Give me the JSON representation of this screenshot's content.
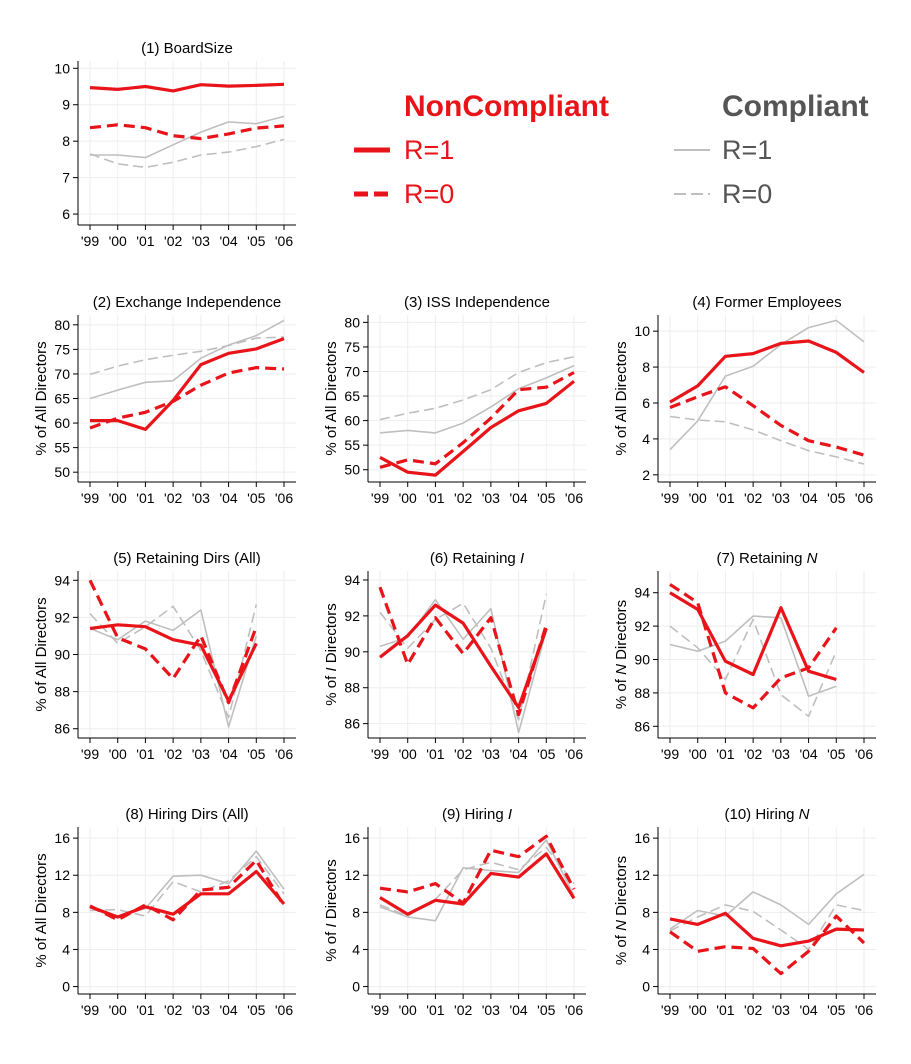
{
  "colors": {
    "noncompliant": "#e8141a",
    "compliant": "#bfbfbf",
    "compliant_title": "#555555",
    "axis": "#000000",
    "grid": "#eeeeee"
  },
  "legend": {
    "noncompliant_title": "NonCompliant",
    "compliant_title": "Compliant",
    "nc_r1": "R=1",
    "nc_r0": "R=0",
    "c_r1": "R=1",
    "c_r0": "R=0"
  },
  "chart_data": [
    {
      "type": "line",
      "title": "(1) BoardSize",
      "ylabel": "",
      "ylim": [
        5.7,
        10.2
      ],
      "yticks": [
        6,
        7,
        8,
        9,
        10
      ],
      "x": [
        "'99",
        "'00",
        "'01",
        "'02",
        "'03",
        "'04",
        "'05",
        "'06"
      ],
      "series": [
        {
          "group": "NonCompliant",
          "label": "R=1",
          "values": [
            9.47,
            9.42,
            9.5,
            9.38,
            9.55,
            9.51,
            9.53,
            9.56
          ]
        },
        {
          "group": "NonCompliant",
          "label": "R=0",
          "values": [
            8.37,
            8.45,
            8.37,
            8.15,
            8.07,
            8.2,
            8.36,
            8.42
          ]
        },
        {
          "group": "Compliant",
          "label": "R=1",
          "values": [
            7.62,
            7.62,
            7.55,
            7.9,
            8.25,
            8.53,
            8.48,
            8.68
          ]
        },
        {
          "group": "Compliant",
          "label": "R=0",
          "values": [
            7.65,
            7.38,
            7.28,
            7.42,
            7.62,
            7.7,
            7.85,
            8.05
          ]
        }
      ]
    },
    {
      "type": "line",
      "title": "(2) Exchange Independence",
      "ylabel": "% of All Directors",
      "ylim": [
        48,
        82
      ],
      "yticks": [
        50,
        55,
        60,
        65,
        70,
        75,
        80
      ],
      "x": [
        "'99",
        "'00",
        "'01",
        "'02",
        "'03",
        "'04",
        "'05",
        "'06"
      ],
      "series": [
        {
          "group": "NonCompliant",
          "label": "R=1",
          "values": [
            60.5,
            60.5,
            58.7,
            64.6,
            71.9,
            74.2,
            75.1,
            77.2
          ]
        },
        {
          "group": "NonCompliant",
          "label": "R=0",
          "values": [
            59.0,
            61.0,
            62.2,
            64.4,
            67.7,
            70.2,
            71.3,
            71.0
          ]
        },
        {
          "group": "Compliant",
          "label": "R=1",
          "values": [
            65.0,
            66.7,
            68.3,
            68.6,
            73.2,
            75.9,
            77.8,
            80.9
          ]
        },
        {
          "group": "Compliant",
          "label": "R=0",
          "values": [
            69.9,
            71.6,
            72.9,
            73.8,
            74.6,
            75.8,
            77.3,
            77.5
          ]
        }
      ]
    },
    {
      "type": "line",
      "title": "(3) ISS Independence",
      "ylabel": "% of All Directors",
      "ylim": [
        47.5,
        81.5
      ],
      "yticks": [
        50,
        55,
        60,
        65,
        70,
        75,
        80
      ],
      "x": [
        "'99",
        "'00",
        "'01",
        "'02",
        "'03",
        "'04",
        "'05",
        "'06"
      ],
      "series": [
        {
          "group": "NonCompliant",
          "label": "R=1",
          "values": [
            52.5,
            49.5,
            48.9,
            53.7,
            58.6,
            62.0,
            63.5,
            68.0
          ]
        },
        {
          "group": "NonCompliant",
          "label": "R=0",
          "values": [
            50.5,
            52.0,
            51.2,
            55.5,
            60.5,
            66.3,
            66.8,
            69.8
          ]
        },
        {
          "group": "Compliant",
          "label": "R=1",
          "values": [
            57.5,
            58.0,
            57.5,
            59.5,
            62.8,
            66.5,
            68.7,
            71.2
          ]
        },
        {
          "group": "Compliant",
          "label": "R=0",
          "values": [
            60.2,
            61.5,
            62.5,
            64.2,
            66.3,
            69.8,
            71.8,
            73.0
          ]
        }
      ]
    },
    {
      "type": "line",
      "title": "(4) Former Employees",
      "ylabel": "% of All Directors",
      "ylim": [
        1.6,
        10.9
      ],
      "yticks": [
        2,
        4,
        6,
        8,
        10
      ],
      "x": [
        "'99",
        "'00",
        "'01",
        "'02",
        "'03",
        "'04",
        "'05",
        "'06"
      ],
      "series": [
        {
          "group": "NonCompliant",
          "label": "R=1",
          "values": [
            6.05,
            6.95,
            8.6,
            8.75,
            9.32,
            9.45,
            8.82,
            7.7
          ]
        },
        {
          "group": "NonCompliant",
          "label": "R=0",
          "values": [
            5.75,
            6.35,
            6.9,
            5.85,
            4.75,
            3.9,
            3.55,
            3.1
          ]
        },
        {
          "group": "Compliant",
          "label": "R=1",
          "values": [
            3.4,
            5.0,
            7.5,
            8.05,
            9.25,
            10.2,
            10.6,
            9.4
          ]
        },
        {
          "group": "Compliant",
          "label": "R=0",
          "values": [
            5.25,
            5.05,
            4.95,
            4.5,
            3.9,
            3.35,
            3.0,
            2.6
          ]
        }
      ]
    },
    {
      "type": "line",
      "title": "(5) Retaining Dirs (All)",
      "ylabel": "% of All Directors",
      "ylim": [
        85.5,
        94.5
      ],
      "yticks": [
        86,
        88,
        90,
        92,
        94
      ],
      "x": [
        "'99",
        "'00",
        "'01",
        "'02",
        "'03",
        "'04",
        "'05",
        "'06"
      ],
      "series": [
        {
          "group": "NonCompliant",
          "label": "R=1",
          "values": [
            91.4,
            91.6,
            91.5,
            90.8,
            90.5,
            87.5,
            90.6,
            null
          ]
        },
        {
          "group": "NonCompliant",
          "label": "R=0",
          "values": [
            94.0,
            90.9,
            90.3,
            88.7,
            91.0,
            87.4,
            91.5,
            null
          ]
        },
        {
          "group": "Compliant",
          "label": "R=1",
          "values": [
            91.4,
            90.8,
            91.8,
            91.3,
            92.4,
            86.1,
            91.0,
            null
          ]
        },
        {
          "group": "Compliant",
          "label": "R=0",
          "values": [
            92.2,
            90.6,
            91.5,
            92.6,
            90.2,
            86.6,
            92.7,
            null
          ]
        }
      ]
    },
    {
      "type": "line",
      "title": "(6) Retaining I",
      "title_plain": "(6) Retaining ",
      "title_italic": "I",
      "ylabel": "% of I Directors",
      "ylim": [
        85.2,
        94.5
      ],
      "yticks": [
        86,
        88,
        90,
        92,
        94
      ],
      "x": [
        "'99",
        "'00",
        "'01",
        "'02",
        "'03",
        "'04",
        "'05",
        "'06"
      ],
      "series": [
        {
          "group": "NonCompliant",
          "label": "R=1",
          "values": [
            89.7,
            90.9,
            92.6,
            91.6,
            89.2,
            86.9,
            91.3,
            null
          ]
        },
        {
          "group": "NonCompliant",
          "label": "R=0",
          "values": [
            93.6,
            89.3,
            91.9,
            89.9,
            91.9,
            86.5,
            91.5,
            null
          ]
        },
        {
          "group": "Compliant",
          "label": "R=1",
          "values": [
            90.3,
            90.8,
            92.9,
            90.7,
            92.4,
            85.5,
            91.2,
            null
          ]
        },
        {
          "group": "Compliant",
          "label": "R=0",
          "values": [
            92.2,
            90.2,
            91.8,
            92.7,
            90.2,
            86.2,
            93.2,
            null
          ]
        }
      ]
    },
    {
      "type": "line",
      "title": "(7) Retaining N",
      "title_plain": "(7) Retaining ",
      "title_italic": "N",
      "ylabel": "% of N Directors",
      "ylim": [
        85.3,
        95.3
      ],
      "yticks": [
        86,
        88,
        90,
        92,
        94
      ],
      "x": [
        "'99",
        "'00",
        "'01",
        "'02",
        "'03",
        "'04",
        "'05",
        "'06"
      ],
      "series": [
        {
          "group": "NonCompliant",
          "label": "R=1",
          "values": [
            94.0,
            93.0,
            89.9,
            89.1,
            93.1,
            89.3,
            88.8,
            null
          ]
        },
        {
          "group": "NonCompliant",
          "label": "R=0",
          "values": [
            94.5,
            93.4,
            88.0,
            87.1,
            88.9,
            89.5,
            91.9,
            null
          ]
        },
        {
          "group": "Compliant",
          "label": "R=1",
          "values": [
            90.9,
            90.5,
            91.1,
            92.6,
            92.5,
            87.8,
            88.4,
            null
          ]
        },
        {
          "group": "Compliant",
          "label": "R=0",
          "values": [
            92.0,
            90.7,
            88.8,
            92.4,
            87.9,
            86.6,
            90.5,
            null
          ]
        }
      ]
    },
    {
      "type": "line",
      "title": "(8) Hiring Dirs (All)",
      "ylabel": "% of All Directors",
      "ylim": [
        -0.8,
        17.2
      ],
      "yticks": [
        0,
        4,
        8,
        12,
        16
      ],
      "x": [
        "'99",
        "'00",
        "'01",
        "'02",
        "'03",
        "'04",
        "'05",
        "'06"
      ],
      "series": [
        {
          "group": "NonCompliant",
          "label": "R=1",
          "values": [
            8.6,
            7.5,
            8.6,
            7.8,
            10.0,
            10.0,
            12.4,
            8.9
          ]
        },
        {
          "group": "NonCompliant",
          "label": "R=0",
          "values": [
            8.7,
            7.2,
            8.8,
            7.2,
            10.4,
            10.7,
            13.6,
            8.7
          ]
        },
        {
          "group": "Compliant",
          "label": "R=1",
          "values": [
            8.7,
            7.6,
            8.4,
            11.9,
            12.0,
            11.1,
            14.6,
            10.5
          ]
        },
        {
          "group": "Compliant",
          "label": "R=0",
          "values": [
            8.2,
            8.3,
            7.6,
            11.3,
            10.2,
            11.4,
            14.0,
            10.0
          ]
        }
      ]
    },
    {
      "type": "line",
      "title": "(9) Hiring I",
      "title_plain": "(9) Hiring ",
      "title_italic": "I",
      "ylabel": "% of I Directors",
      "ylim": [
        -0.8,
        17.2
      ],
      "yticks": [
        0,
        4,
        8,
        12,
        16
      ],
      "x": [
        "'99",
        "'00",
        "'01",
        "'02",
        "'03",
        "'04",
        "'05",
        "'06"
      ],
      "series": [
        {
          "group": "NonCompliant",
          "label": "R=1",
          "values": [
            9.6,
            7.8,
            9.3,
            8.9,
            12.2,
            11.8,
            14.3,
            9.5
          ]
        },
        {
          "group": "NonCompliant",
          "label": "R=0",
          "values": [
            10.6,
            10.2,
            11.1,
            9.0,
            14.7,
            14.0,
            16.2,
            10.5
          ]
        },
        {
          "group": "Compliant",
          "label": "R=1",
          "values": [
            8.6,
            7.5,
            7.1,
            12.8,
            12.5,
            12.3,
            15.8,
            9.8
          ]
        },
        {
          "group": "Compliant",
          "label": "R=0",
          "values": [
            8.8,
            7.6,
            9.4,
            12.6,
            13.4,
            12.6,
            15.0,
            11.1
          ]
        }
      ]
    },
    {
      "type": "line",
      "title": "(10) Hiring N",
      "title_plain": "(10) Hiring ",
      "title_italic": "N",
      "ylabel": "% of N Directors",
      "ylim": [
        -0.8,
        17.2
      ],
      "yticks": [
        0,
        4,
        8,
        12,
        16
      ],
      "x": [
        "'99",
        "'00",
        "'01",
        "'02",
        "'03",
        "'04",
        "'05",
        "'06"
      ],
      "series": [
        {
          "group": "NonCompliant",
          "label": "R=1",
          "values": [
            7.3,
            6.7,
            7.9,
            5.2,
            4.4,
            4.9,
            6.2,
            6.1
          ]
        },
        {
          "group": "NonCompliant",
          "label": "R=0",
          "values": [
            5.9,
            3.8,
            4.3,
            4.1,
            1.4,
            3.8,
            7.6,
            4.7
          ]
        },
        {
          "group": "Compliant",
          "label": "R=1",
          "values": [
            6.2,
            8.2,
            7.6,
            10.2,
            8.8,
            6.7,
            10.0,
            12.1
          ]
        },
        {
          "group": "Compliant",
          "label": "R=0",
          "values": [
            6.0,
            7.5,
            8.8,
            8.1,
            6.1,
            4.0,
            8.8,
            8.2
          ]
        }
      ]
    }
  ]
}
